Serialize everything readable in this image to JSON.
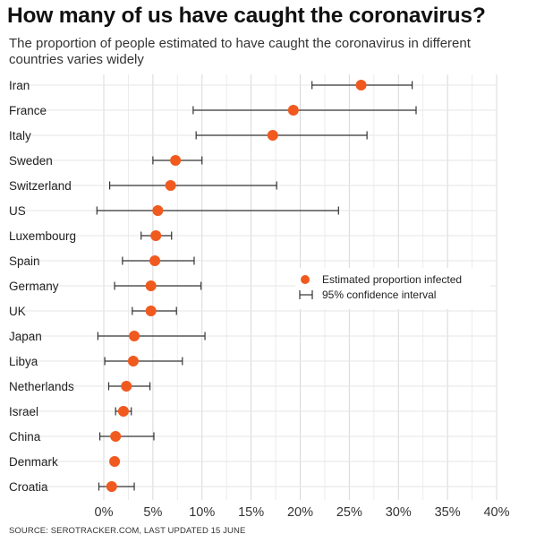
{
  "title": "How many of us have caught the coronavirus?",
  "subtitle": "The proportion of people estimated to have caught the coronavirus in different countries varies widely",
  "source": "SOURCE: SEROTRACKER.COM, LAST UPDATED 15 JUNE",
  "colors": {
    "point": "#f05a1f",
    "whisker": "#333333",
    "grid": "#e0e0e0"
  },
  "chart_data": {
    "type": "scatter",
    "subtype": "dot-and-whisker",
    "title": "How many of us have caught the coronavirus?",
    "subtitle": "The proportion of people estimated to have caught the coronavirus in different countries varies widely",
    "xlim": [
      0,
      40
    ],
    "x_ticks": [
      0,
      5,
      10,
      15,
      20,
      25,
      30,
      35,
      40
    ],
    "x_tick_labels": [
      "0%",
      "5%",
      "10%",
      "15%",
      "20%",
      "25%",
      "30%",
      "35%",
      "40%"
    ],
    "grid": true,
    "legend_position": "right",
    "legend": [
      "Estimated proportion infected",
      "95% confidence interval"
    ],
    "categories": [
      "Iran",
      "France",
      "Italy",
      "Sweden",
      "Switzerland",
      "US",
      "Luxembourg",
      "Spain",
      "Germany",
      "UK",
      "Japan",
      "Libya",
      "Netherlands",
      "Israel",
      "China",
      "Denmark",
      "Croatia"
    ],
    "values": [
      26.2,
      19.3,
      17.2,
      7.3,
      6.8,
      5.5,
      5.3,
      5.2,
      4.8,
      4.8,
      3.1,
      3.0,
      2.3,
      2.0,
      1.2,
      1.1,
      0.8
    ],
    "ci_low": [
      21.2,
      9.1,
      9.4,
      5.0,
      0.6,
      -0.7,
      3.8,
      1.9,
      1.1,
      2.9,
      -0.6,
      0.1,
      0.5,
      1.2,
      -0.4,
      null,
      -0.5
    ],
    "ci_high": [
      31.4,
      31.8,
      26.8,
      10.0,
      17.6,
      23.9,
      6.9,
      9.2,
      9.9,
      7.4,
      10.3,
      8.0,
      4.7,
      2.8,
      5.1,
      null,
      3.1
    ]
  }
}
